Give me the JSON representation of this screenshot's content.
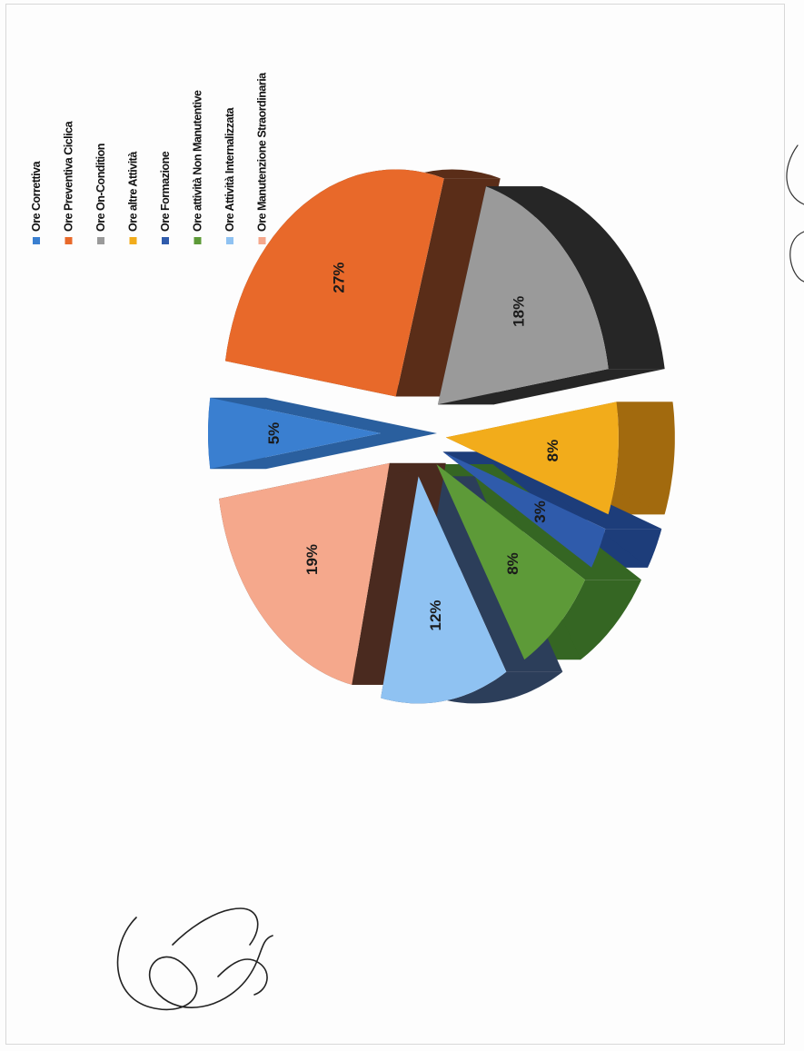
{
  "chart_data": {
    "type": "pie",
    "title": "",
    "slices": [
      {
        "name": "Ore Correttiva",
        "value": 5,
        "label": "5%",
        "color": "#3a7fd0",
        "side": "#2a5f9e"
      },
      {
        "name": "Ore Preventiva Ciclica",
        "value": 27,
        "label": "27%",
        "color": "#e8692a",
        "side": "#5a2d18"
      },
      {
        "name": "Ore On-Condition",
        "value": 18,
        "label": "18%",
        "color": "#9a9a9a",
        "side": "#262626"
      },
      {
        "name": "Ore altre Attività",
        "value": 8,
        "label": "8%",
        "color": "#f2ac1b",
        "side": "#a26a0e"
      },
      {
        "name": "Ore Formazione",
        "value": 3,
        "label": "3%",
        "color": "#2f5bab",
        "side": "#1d3d7a"
      },
      {
        "name": "Ore attività Non Manutentive",
        "value": 8,
        "label": "8%",
        "color": "#5d9a38",
        "side": "#356623"
      },
      {
        "name": "Ore Attività Internalizzata",
        "value": 12,
        "label": "12%",
        "color": "#8fc2f2",
        "side": "#2c3e5a"
      },
      {
        "name": "Ore Manutenzione Straordinaria",
        "value": 19,
        "label": "19%",
        "color": "#f5a88c",
        "side": "#4a2a1f"
      }
    ],
    "legend_position": "right (rotated page)",
    "orientation": "rotated 90 degrees counter-clockwise",
    "style": "3d-exploded"
  }
}
